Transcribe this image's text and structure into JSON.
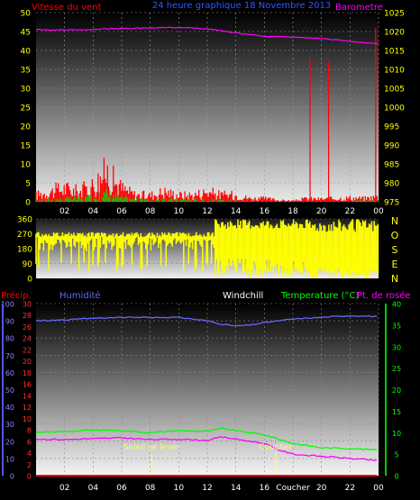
{
  "header": {
    "wind_title": "Vitesse du vent",
    "center_title": "24 heure graphique  18 Novembre 2013",
    "baro_title": "Barometre"
  },
  "labels": {
    "precip": "Précip.",
    "humidity": "Humidité",
    "windchill": "Windchill",
    "temperature": "Temperature (°C)",
    "dewpoint": "Pt. de rosée",
    "sunrise": "Soleil se lever",
    "sunset": "Coucher"
  },
  "colors": {
    "wind": "#ff0000",
    "gust": "#00cc00",
    "baro": "#ff00ff",
    "direction": "#ffff00",
    "humidity": "#6666ff",
    "temperature": "#00ff00",
    "dewpoint": "#ff00ff",
    "precip": "#ff0000",
    "axis_text": "#ffff00"
  },
  "chart_data": [
    {
      "type": "area",
      "x_ticks": [
        "02",
        "04",
        "06",
        "08",
        "10",
        "12",
        "14",
        "16",
        "18",
        "20",
        "22",
        "00"
      ],
      "y_left_ticks": [
        "0",
        "5",
        "10",
        "15",
        "20",
        "25",
        "30",
        "35",
        "40",
        "45",
        "50"
      ],
      "y_left_range": [
        0,
        50
      ],
      "y_right_ticks": [
        "975",
        "980",
        "985",
        "990",
        "995",
        "1000",
        "1005",
        "1010",
        "1015",
        "1020",
        "1025"
      ],
      "y_right_range": [
        975,
        1025
      ],
      "series": [
        {
          "name": "Barometre",
          "x": [
            0,
            2,
            4,
            6,
            8,
            10,
            12,
            14,
            16,
            18,
            20,
            22,
            24
          ],
          "values": [
            1020.5,
            1020.4,
            1020.6,
            1020.8,
            1021,
            1021.1,
            1020.7,
            1019.6,
            1018.8,
            1018.5,
            1018.2,
            1017.4,
            1016.8
          ]
        },
        {
          "x": [
            0,
            1,
            2,
            3,
            4,
            4.5,
            5,
            5.5,
            6,
            6.5,
            7,
            8,
            9,
            10,
            11,
            12,
            13,
            14,
            15,
            16,
            17,
            18,
            19,
            20,
            21,
            22,
            23,
            24
          ],
          "values": [
            2,
            3,
            4,
            3,
            5,
            7,
            9,
            6,
            4,
            3,
            2,
            2,
            3,
            2,
            2,
            3,
            2,
            2,
            1,
            1,
            0.5,
            0.3,
            1,
            0.8,
            1,
            1.2,
            1,
            1.5
          ]
        },
        {
          "x": [
            0,
            2,
            4,
            5,
            6,
            8,
            10,
            12,
            14,
            16,
            18,
            20,
            22,
            24
          ],
          "values": [
            0.5,
            0.8,
            1.2,
            2.5,
            1,
            0.5,
            0.6,
            0.4,
            0.3,
            0.1,
            0,
            0.1,
            0.2,
            0.4
          ]
        }
      ],
      "spikes": [
        {
          "x": 19.2,
          "value": 38
        },
        {
          "x": 20.5,
          "value": 37
        },
        {
          "x": 23.8,
          "value": 46
        }
      ]
    },
    {
      "type": "scatter",
      "x_ticks": [],
      "y_ticks": [
        "0",
        "90",
        "180",
        "270",
        "360"
      ],
      "y_range": [
        0,
        360
      ],
      "compass": [
        "N",
        "O",
        "S",
        "E",
        "N"
      ]
    },
    {
      "type": "line",
      "x_ticks": [
        "02",
        "04",
        "06",
        "08",
        "10",
        "12",
        "14",
        "16",
        "Coucher",
        "20",
        "22",
        "00"
      ],
      "y_humidity_ticks": [
        "0",
        "10",
        "20",
        "30",
        "40",
        "50",
        "60",
        "70",
        "80",
        "90",
        "100"
      ],
      "y_precip_ticks": [
        "0",
        "2",
        "4",
        "6",
        "8",
        "10",
        "12",
        "14",
        "16",
        "18",
        "20",
        "22",
        "24",
        "26",
        "28",
        "30"
      ],
      "y_temp_ticks": [
        "0",
        "5",
        "10",
        "15",
        "20",
        "25",
        "30",
        "35",
        "40"
      ],
      "y_humidity_range": [
        0,
        100
      ],
      "y_temp_range": [
        0,
        40
      ],
      "sunrise_hour": 8.1,
      "sunset_hour": 16.8,
      "series": [
        {
          "name": "Humidité",
          "x": [
            0,
            2,
            4,
            6,
            8,
            10,
            12,
            13,
            14,
            15,
            16,
            18,
            20,
            22,
            24
          ],
          "values": [
            90,
            90.5,
            91.5,
            92,
            92,
            92,
            90,
            88,
            87,
            87.5,
            89,
            91,
            92,
            93,
            92.5
          ]
        },
        {
          "name": "Temperature (°C)",
          "x": [
            0,
            2,
            4,
            6,
            8,
            10,
            12,
            13,
            14,
            16,
            17,
            18,
            20,
            22,
            24
          ],
          "values": [
            10,
            10.3,
            10.6,
            10.5,
            10,
            10.5,
            10.3,
            11,
            10.5,
            9.5,
            8.5,
            7.5,
            6.5,
            6.3,
            6
          ]
        },
        {
          "name": "Pt. de rosée",
          "x": [
            0,
            2,
            4,
            6,
            8,
            10,
            12,
            13,
            14,
            16,
            17,
            18,
            20,
            22,
            24
          ],
          "values": [
            8.5,
            8.4,
            8.6,
            8.8,
            8.4,
            8.5,
            8.2,
            9,
            8.5,
            7.5,
            6,
            5,
            4.5,
            4,
            3.5
          ]
        },
        {
          "name": "Précip.",
          "x": [
            0,
            24
          ],
          "values": [
            0,
            0
          ]
        }
      ]
    }
  ]
}
